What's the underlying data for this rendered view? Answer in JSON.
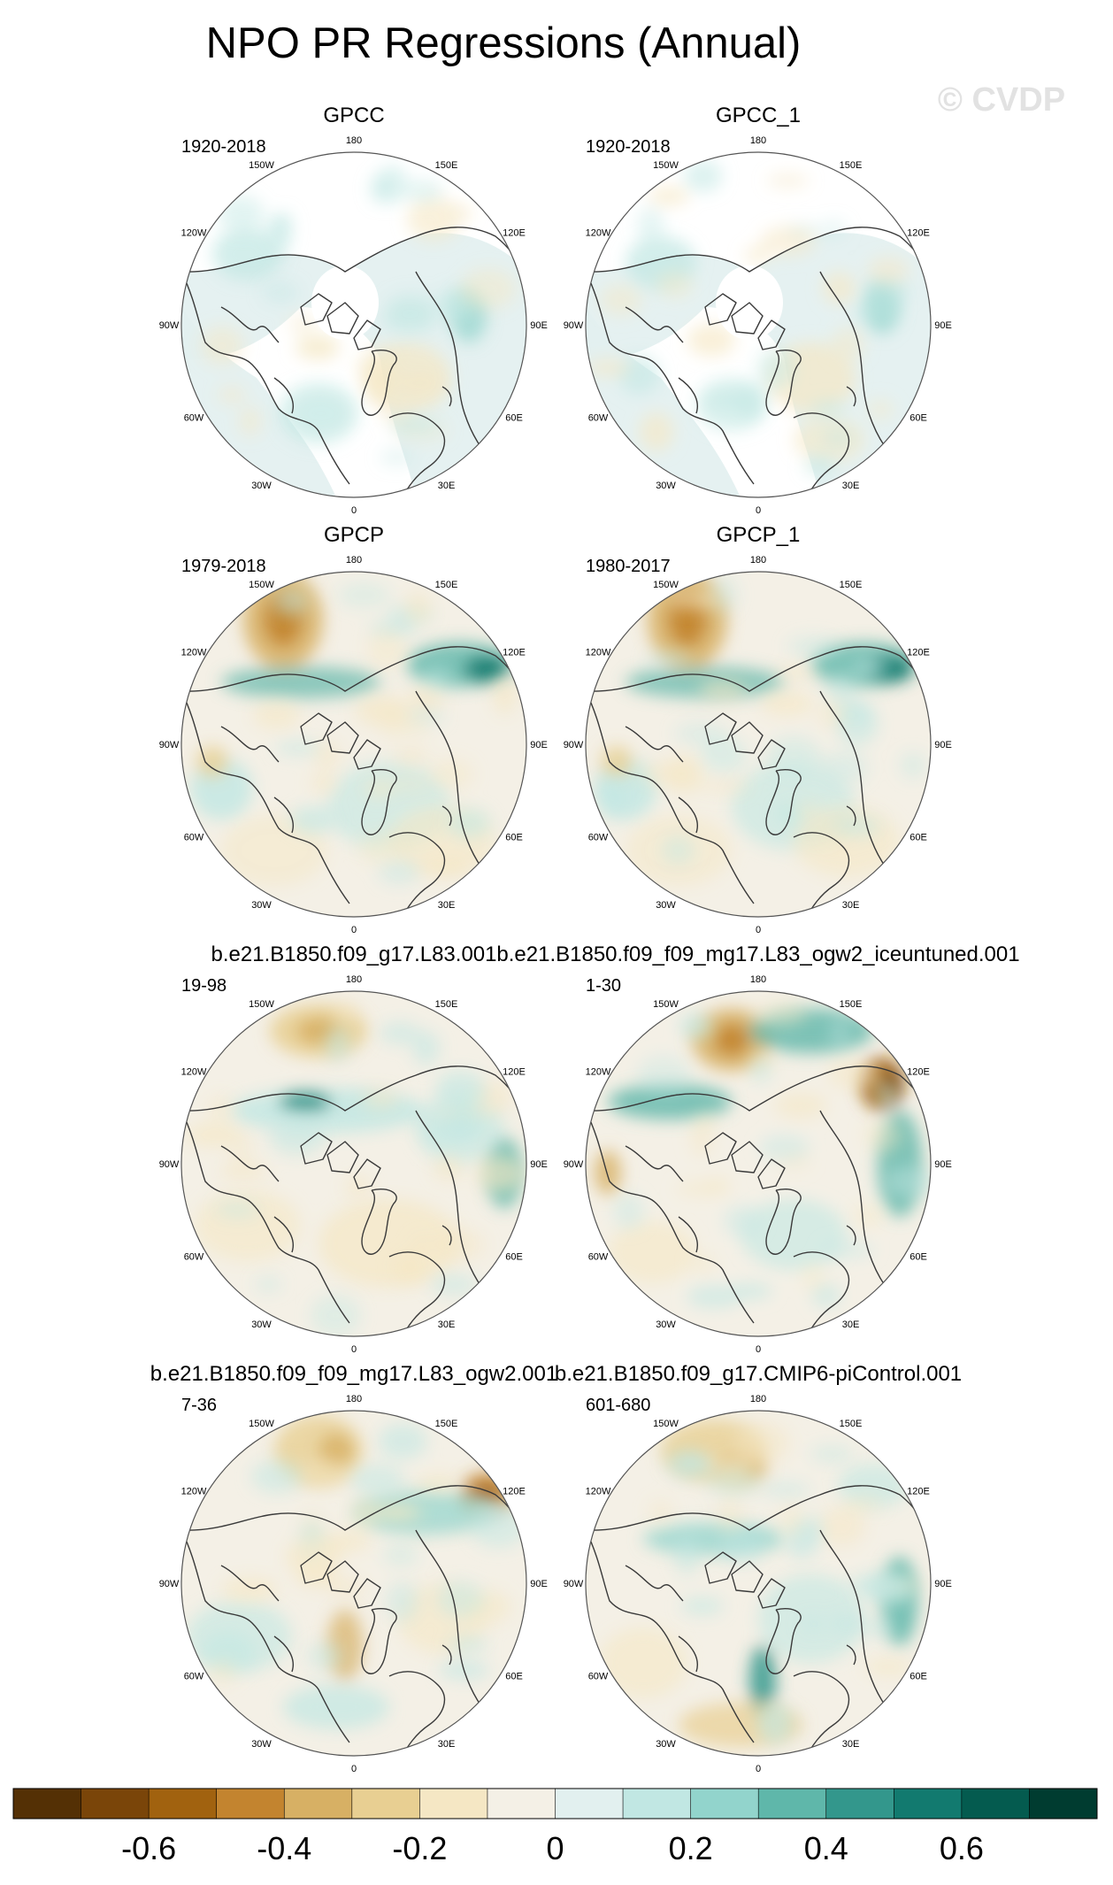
{
  "figure": {
    "title": "NPO PR Regressions (Annual)",
    "watermark": "© CVDP"
  },
  "chart_data": {
    "type": "heatmap",
    "projection": "north polar stereographic",
    "longitude_labels": [
      "180",
      "150E",
      "120E",
      "90E",
      "60E",
      "30E",
      "0",
      "30W",
      "60W",
      "90W",
      "120W",
      "150W"
    ],
    "panels": [
      {
        "name": "GPCC",
        "range": "1920-2018",
        "land_only": true
      },
      {
        "name": "GPCC_1",
        "range": "1920-2018",
        "land_only": true
      },
      {
        "name": "GPCP",
        "range": "1979-2018",
        "land_only": false
      },
      {
        "name": "GPCP_1",
        "range": "1980-2017",
        "land_only": false
      },
      {
        "name": "b.e21.B1850.f09_g17.L83.001",
        "range": "19-98",
        "land_only": false
      },
      {
        "name": "b.e21.B1850.f09_f09_mg17.L83_ogw2_iceuntuned.001",
        "range": "1-30",
        "land_only": false
      },
      {
        "name": "b.e21.B1850.f09_f09_mg17.L83_ogw2.001",
        "range": "7-36",
        "land_only": false
      },
      {
        "name": "b.e21.B1850.f09_g17.CMIP6-piControl.001",
        "range": "601-680",
        "land_only": false
      }
    ],
    "colorbar": {
      "levels": [
        -0.7,
        -0.6,
        -0.5,
        -0.4,
        -0.3,
        -0.2,
        -0.1,
        0,
        0.1,
        0.2,
        0.3,
        0.4,
        0.5,
        0.6,
        0.7
      ],
      "colors": [
        "#543005",
        "#7a4509",
        "#a1620f",
        "#c3842f",
        "#d7b064",
        "#e8cf92",
        "#f5e7c4",
        "#f4f0e6",
        "#e2f0ef",
        "#c1e7e3",
        "#92d4cc",
        "#5fb7aa",
        "#33978c",
        "#127a6f",
        "#045b4f",
        "#003c30"
      ],
      "tick_labels": [
        "-0.6",
        "-0.4",
        "-0.2",
        "0",
        "0.2",
        "0.4",
        "0.6"
      ],
      "tick_values": [
        -0.6,
        -0.4,
        -0.2,
        0,
        0.2,
        0.4,
        0.6
      ]
    }
  }
}
